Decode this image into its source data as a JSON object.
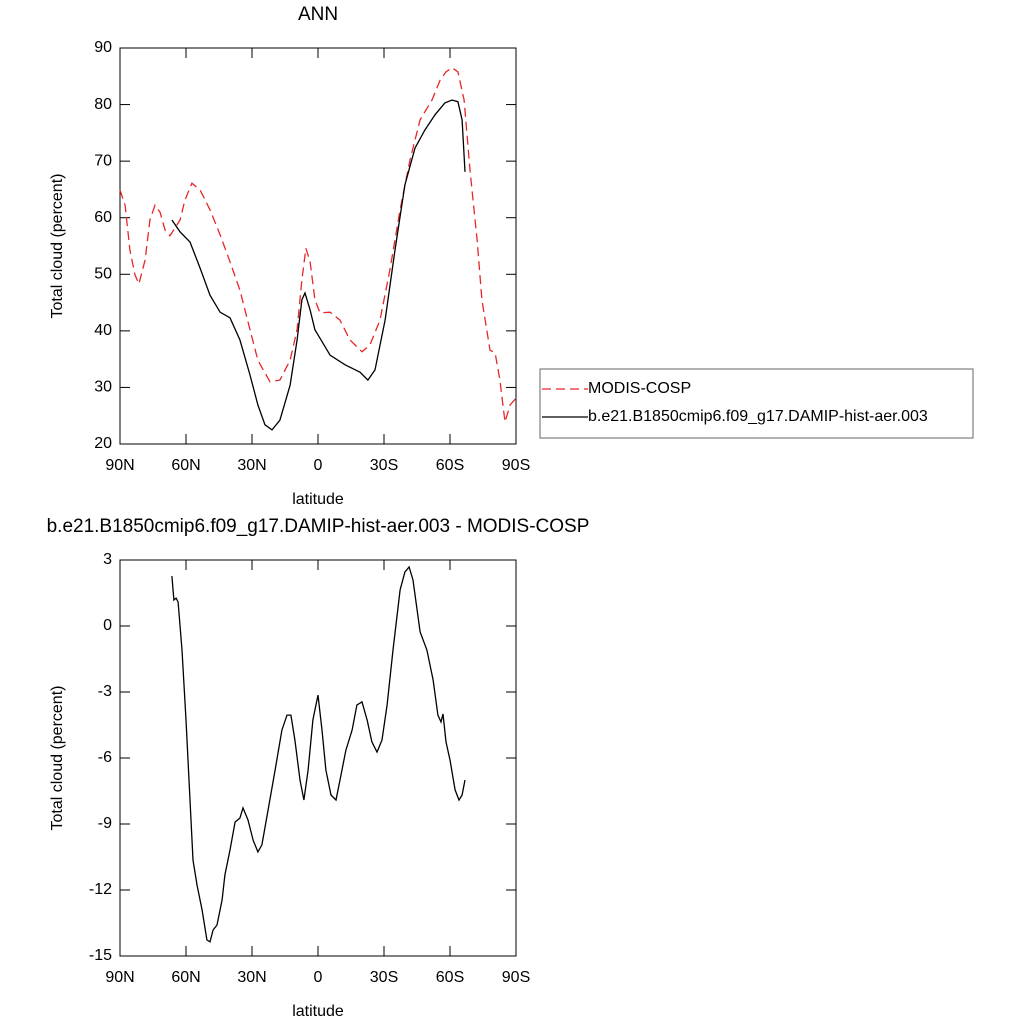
{
  "chart_data": [
    {
      "type": "line",
      "title": "ANN",
      "xlabel": "latitude",
      "ylabel": "Total cloud (percent)",
      "xlim": [
        90,
        -90
      ],
      "xticks": [
        {
          "value": 90,
          "label": "90N"
        },
        {
          "value": 60,
          "label": "60N"
        },
        {
          "value": 30,
          "label": "30N"
        },
        0,
        {
          "value": -30,
          "label": "30S"
        },
        {
          "value": -60,
          "label": "60S"
        },
        {
          "value": -90,
          "label": "90S"
        }
      ],
      "ylim": [
        20,
        90
      ],
      "yticks": [
        20,
        30,
        40,
        50,
        60,
        70,
        80,
        90
      ],
      "legend": "right",
      "series": [
        {
          "name": "MODIS-COSP",
          "color": "#e8262a",
          "dashed": true,
          "x": [
            90,
            87.7,
            85.5,
            83.2,
            81.4,
            78.6,
            76.4,
            74.1,
            71.8,
            69.5,
            67.3,
            65,
            62.7,
            60.5,
            57.3,
            53.6,
            49.1,
            44.5,
            40,
            35.5,
            30.9,
            27.3,
            21.8,
            17.3,
            12.7,
            9.5,
            7.3,
            5.5,
            3.6,
            1.4,
            -0.9,
            -5.5,
            -10,
            -14.5,
            -20,
            -23.6,
            -28.2,
            -32.7,
            -37.3,
            -41.8,
            -46.4,
            -51.8,
            -55.5,
            -58.2,
            -60.9,
            -63.6,
            -66.4,
            -69.1,
            -72.3,
            -74.5,
            -78.2,
            -80.5,
            -82.7,
            -85,
            -87.3,
            -90
          ],
          "values": [
            64.9,
            62.2,
            54.3,
            49.9,
            48.3,
            52.5,
            59.6,
            62.2,
            61,
            57.8,
            56.8,
            58.2,
            59.6,
            63.1,
            66.1,
            64.9,
            61.4,
            57,
            52.2,
            47.2,
            40.2,
            34.8,
            31,
            31.3,
            34.8,
            40.2,
            49,
            54.6,
            52.2,
            45.5,
            43.2,
            43.3,
            41.9,
            38.4,
            36.3,
            37.5,
            41.9,
            50.8,
            61.4,
            70.2,
            77.3,
            80.8,
            84.3,
            85.8,
            86.5,
            85.8,
            80.8,
            68.4,
            56.1,
            45.5,
            36.6,
            36.1,
            31.3,
            23.9,
            26.9,
            28.1
          ]
        },
        {
          "name": "b.e21.B1850cmip6.f09_g17.DAMIP-hist-aer.003",
          "color": "#000000",
          "dashed": false,
          "x": [
            66.4,
            62.7,
            58.2,
            53.6,
            49.1,
            44.5,
            40,
            35.5,
            30.9,
            27.3,
            24.1,
            20.9,
            17.3,
            12.7,
            9.5,
            7.3,
            5.9,
            3.6,
            1.4,
            -0.9,
            -5.5,
            -12.3,
            -19.1,
            -22.7,
            -25.9,
            -30.5,
            -35,
            -39.5,
            -44.1,
            -48.6,
            -53.2,
            -57.7,
            -60.9,
            -63.6,
            -65.5,
            -66.8
          ],
          "values": [
            59.6,
            57.5,
            55.7,
            51.1,
            46.3,
            43.3,
            42.3,
            38.4,
            32.2,
            26.9,
            23.4,
            22.5,
            24.2,
            30.4,
            38.4,
            45.5,
            46.7,
            43.7,
            40.2,
            38.7,
            35.7,
            34,
            32.7,
            31.3,
            33.1,
            41.9,
            54.3,
            65.8,
            72.3,
            75.5,
            78.2,
            80.3,
            80.8,
            80.5,
            77.3,
            68.1
          ]
        }
      ]
    },
    {
      "type": "line",
      "title": "b.e21.B1850cmip6.f09_g17.DAMIP-hist-aer.003 - MODIS-COSP",
      "xlabel": "latitude",
      "ylabel": "Total cloud (percent)",
      "xlim": [
        90,
        -90
      ],
      "xticks": [
        {
          "value": 90,
          "label": "90N"
        },
        {
          "value": 60,
          "label": "60N"
        },
        {
          "value": 30,
          "label": "30N"
        },
        0,
        {
          "value": -30,
          "label": "30S"
        },
        {
          "value": -60,
          "label": "60S"
        },
        {
          "value": -90,
          "label": "90S"
        }
      ],
      "ylim": [
        -15,
        3
      ],
      "yticks": [
        -15,
        -12,
        -9,
        -6,
        -3,
        0,
        3
      ],
      "series": [
        {
          "color": "#000000",
          "dashed": false,
          "x": [
            66.4,
            65.5,
            64.5,
            63.6,
            61.8,
            60,
            58.2,
            56.8,
            55,
            52.7,
            50.5,
            49.1,
            47.7,
            45.9,
            43.6,
            42.3,
            40,
            37.7,
            35.5,
            34.1,
            31.8,
            29.5,
            27.3,
            25.5,
            22.7,
            19.5,
            16.4,
            14.1,
            12.3,
            10.5,
            8.2,
            6.4,
            4.5,
            2.3,
            0,
            -1.8,
            -3.6,
            -5.9,
            -8.2,
            -10,
            -12.7,
            -15.5,
            -17.7,
            -20,
            -22.3,
            -24.5,
            -26.8,
            -29.1,
            -31.4,
            -34.1,
            -37.3,
            -39.5,
            -41.4,
            -43.2,
            -46.4,
            -49.5,
            -52.3,
            -54.5,
            -55.9,
            -56.8,
            -58.2,
            -60,
            -62.3,
            -64.1,
            -65.5,
            -66.8
          ],
          "values": [
            2.27,
            1.18,
            1.27,
            1.09,
            -1.09,
            -4.27,
            -7.91,
            -10.64,
            -11.77,
            -12.91,
            -14.27,
            -14.36,
            -13.82,
            -13.59,
            -12.45,
            -11.32,
            -10.18,
            -8.91,
            -8.73,
            -8.27,
            -8.82,
            -9.73,
            -10.27,
            -9.95,
            -8.36,
            -6.55,
            -4.73,
            -4.05,
            -4.05,
            -5.18,
            -7,
            -7.91,
            -6.55,
            -4.27,
            -3.14,
            -4.73,
            -6.55,
            -7.68,
            -7.91,
            -7,
            -5.64,
            -4.73,
            -3.59,
            -3.45,
            -4.27,
            -5.27,
            -5.73,
            -5.18,
            -3.59,
            -1.09,
            1.64,
            2.45,
            2.68,
            2.09,
            -0.27,
            -1.09,
            -2.45,
            -4.05,
            -4.36,
            -4,
            -5.27,
            -6.09,
            -7.45,
            -7.91,
            -7.68,
            -7
          ]
        }
      ]
    }
  ]
}
